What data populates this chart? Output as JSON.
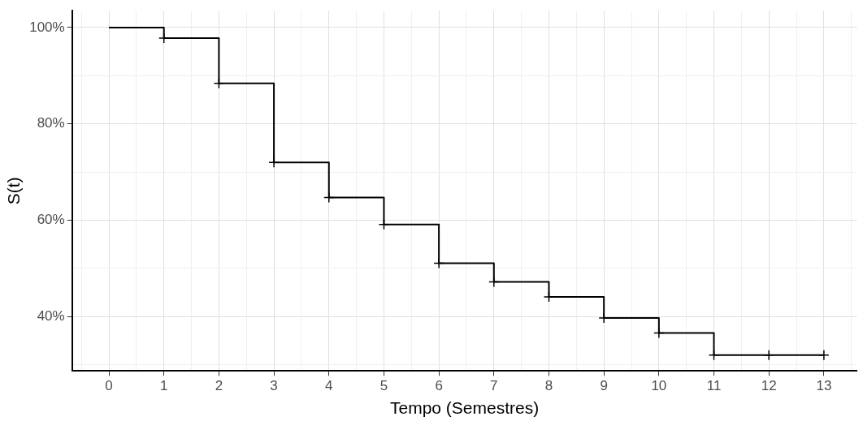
{
  "chart_data": {
    "type": "step",
    "xlabel": "Tempo (Semestres)",
    "ylabel": "S(t)",
    "x": [
      0,
      1,
      2,
      3,
      4,
      5,
      6,
      7,
      8,
      9,
      10,
      11,
      12,
      13
    ],
    "series": [
      {
        "color": "#000000",
        "marker": "none",
        "values": [
          100,
          97.8,
          88.4,
          72.0,
          64.7,
          59.1,
          51.1,
          47.2,
          44.1,
          39.7,
          36.6,
          32.0,
          32.0,
          32.0
        ]
      },
      {
        "type": "scatter",
        "color": "#000000",
        "marker": "cross",
        "x": [
          1,
          2,
          3,
          4,
          5,
          6,
          7,
          8,
          9,
          10,
          11,
          12,
          13
        ],
        "values": [
          97.8,
          88.4,
          72.0,
          64.7,
          59.1,
          51.1,
          47.2,
          44.1,
          39.7,
          36.6,
          32.0,
          32.0,
          32.0
        ]
      }
    ],
    "xlim": [
      -0.67,
      13.6
    ],
    "xticks": [
      {
        "value": -0.5,
        "label": null
      },
      0,
      {
        "value": 0.5,
        "label": null
      },
      1,
      {
        "value": 1.5,
        "label": null
      },
      2,
      {
        "value": 2.5,
        "label": null
      },
      3,
      {
        "value": 3.5,
        "label": null
      },
      4,
      {
        "value": 4.5,
        "label": null
      },
      5,
      {
        "value": 5.5,
        "label": null
      },
      6,
      {
        "value": 6.5,
        "label": null
      },
      7,
      {
        "value": 7.5,
        "label": null
      },
      8,
      {
        "value": 8.5,
        "label": null
      },
      9,
      {
        "value": 9.5,
        "label": null
      },
      10,
      {
        "value": 10.5,
        "label": null
      },
      11,
      {
        "value": 11.5,
        "label": null
      },
      12,
      {
        "value": 12.5,
        "label": null
      },
      13,
      {
        "value": 13.5,
        "label": null
      }
    ],
    "ylim": [
      28.7,
      103.5
    ],
    "yticks": [
      {
        "value": 30,
        "label": null
      },
      {
        "value": 40,
        "label": "40%"
      },
      {
        "value": 50,
        "label": null
      },
      {
        "value": 60,
        "label": "60%"
      },
      {
        "value": 70,
        "label": null
      },
      {
        "value": 80,
        "label": "80%"
      },
      {
        "value": 90,
        "label": null
      },
      {
        "value": 100,
        "label": "100%"
      }
    ],
    "grid": true,
    "legend": false
  }
}
